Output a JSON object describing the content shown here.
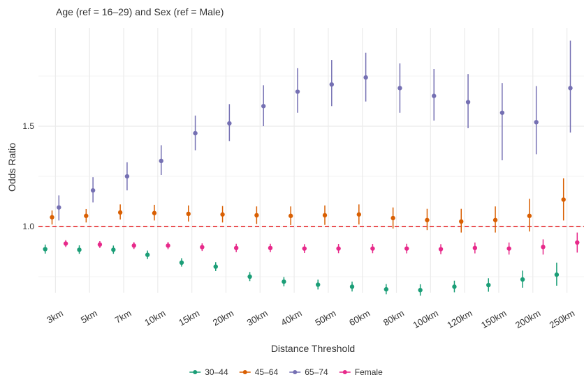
{
  "chart_data": {
    "type": "errorbar",
    "title": "Age (ref = 16–29) and Sex (ref = Male)",
    "x_label": "Distance Threshold",
    "y_label": "Odds Ratio",
    "categories": [
      "3km",
      "5km",
      "7km",
      "10km",
      "15km",
      "20km",
      "30km",
      "40km",
      "50km",
      "60km",
      "80km",
      "100km",
      "120km",
      "150km",
      "200km",
      "250km"
    ],
    "ylim": [
      0.67,
      1.99
    ],
    "yticks": [
      {
        "value": 1,
        "label": "1.0"
      },
      {
        "value": 1.5,
        "label": "1.5"
      }
    ],
    "minor_grid": [
      0.75,
      1.25,
      1.75
    ],
    "reference_line": 1,
    "grid": true,
    "legend_position": "bottom",
    "series": [
      {
        "name": "30–44",
        "color": "#1b9e77",
        "values": [
          0.887,
          0.884,
          0.884,
          0.859,
          0.82,
          0.8,
          0.75,
          0.725,
          0.71,
          0.7,
          0.687,
          0.683,
          0.7,
          0.708,
          0.736,
          0.76
        ],
        "lower": [
          0.865,
          0.864,
          0.864,
          0.838,
          0.8,
          0.778,
          0.728,
          0.702,
          0.686,
          0.676,
          0.662,
          0.655,
          0.672,
          0.675,
          0.695,
          0.705
        ],
        "upper": [
          0.91,
          0.906,
          0.905,
          0.88,
          0.842,
          0.822,
          0.773,
          0.748,
          0.735,
          0.725,
          0.713,
          0.712,
          0.73,
          0.742,
          0.78,
          0.82
        ]
      },
      {
        "name": "45–64",
        "color": "#d95f02",
        "values": [
          1.046,
          1.053,
          1.07,
          1.067,
          1.063,
          1.06,
          1.056,
          1.053,
          1.056,
          1.06,
          1.042,
          1.032,
          1.025,
          1.032,
          1.053,
          1.134
        ],
        "lower": [
          1.01,
          1.02,
          1.035,
          1.03,
          1.025,
          1.02,
          1.013,
          1.007,
          1.008,
          1.01,
          0.99,
          0.982,
          0.97,
          0.97,
          0.975,
          1.03
        ],
        "upper": [
          1.08,
          1.087,
          1.11,
          1.108,
          1.105,
          1.102,
          1.1,
          1.1,
          1.105,
          1.11,
          1.095,
          1.088,
          1.088,
          1.1,
          1.138,
          1.24
        ]
      },
      {
        "name": "65–74",
        "color": "#7570b3",
        "values": [
          1.095,
          1.18,
          1.25,
          1.327,
          1.465,
          1.514,
          1.6,
          1.672,
          1.708,
          1.743,
          1.69,
          1.651,
          1.62,
          1.567,
          1.52,
          1.69
        ],
        "lower": [
          1.03,
          1.12,
          1.18,
          1.257,
          1.38,
          1.426,
          1.5,
          1.567,
          1.6,
          1.623,
          1.567,
          1.528,
          1.49,
          1.33,
          1.36,
          1.468
        ],
        "upper": [
          1.155,
          1.246,
          1.32,
          1.405,
          1.553,
          1.61,
          1.704,
          1.789,
          1.83,
          1.866,
          1.813,
          1.785,
          1.76,
          1.715,
          1.7,
          1.926
        ]
      },
      {
        "name": "Female",
        "color": "#e7298a",
        "values": [
          0.915,
          0.91,
          0.905,
          0.905,
          0.897,
          0.893,
          0.893,
          0.89,
          0.89,
          0.89,
          0.89,
          0.887,
          0.893,
          0.89,
          0.898,
          0.92
        ],
        "lower": [
          0.898,
          0.893,
          0.888,
          0.887,
          0.878,
          0.872,
          0.872,
          0.868,
          0.867,
          0.867,
          0.866,
          0.862,
          0.866,
          0.86,
          0.86,
          0.87
        ],
        "upper": [
          0.932,
          0.927,
          0.922,
          0.923,
          0.916,
          0.914,
          0.914,
          0.912,
          0.913,
          0.913,
          0.914,
          0.912,
          0.92,
          0.92,
          0.936,
          0.97
        ]
      }
    ]
  }
}
